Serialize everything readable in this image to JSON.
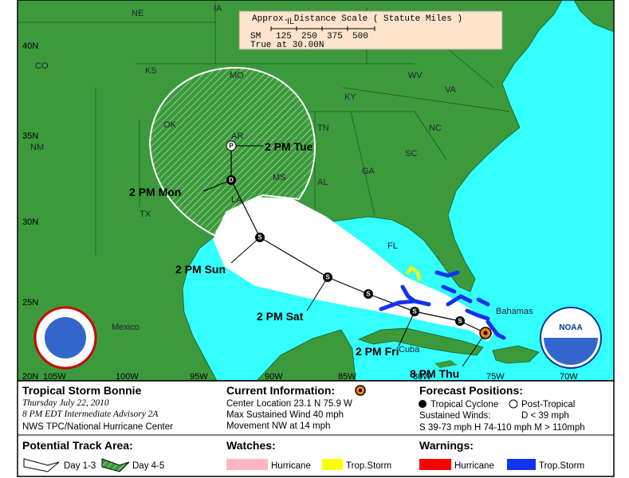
{
  "map": {
    "scale": {
      "title": "Approx. Distance Scale ( Statute Miles )",
      "unit": "SM",
      "ticks": [
        "125",
        "250",
        "375",
        "500"
      ],
      "note": "True at 30.00N"
    },
    "regions": [
      "NE",
      "IA",
      "IL",
      "KS",
      "MO",
      "KY",
      "WV",
      "VA",
      "OK",
      "AR",
      "TN",
      "NC",
      "CO",
      "NM",
      "TX",
      "MS",
      "AL",
      "GA",
      "SC",
      "LA",
      "FL",
      "Mexico",
      "Cuba",
      "Bahamas"
    ],
    "latitudes": [
      "40N",
      "35N",
      "30N",
      "25N",
      "20N"
    ],
    "longitudes": [
      "105W",
      "100W",
      "95W",
      "90W",
      "85W",
      "80W",
      "75W",
      "70W"
    ],
    "markers": [
      "S",
      "S",
      "S",
      "S",
      "S",
      "D",
      "P"
    ],
    "time_labels": [
      "8 PM Thu",
      "2 PM Fri",
      "2 PM Sat",
      "2 PM Sun",
      "2 PM Mon",
      "2 PM Tue"
    ],
    "logo": "NOAA"
  },
  "legend": {
    "storm": {
      "name": "Tropical Storm Bonnie",
      "date": "Thursday July 22, 2010",
      "advisory": "8 PM EDT Intermediate Advisory 2A",
      "source": "NWS TPC/National Hurricane Center"
    },
    "current": {
      "title": "Current Information:",
      "location": "Center Location 23.1 N 75.9 W",
      "wind": "Max Sustained Wind 40 mph",
      "movement": "Movement NW at 14 mph"
    },
    "forecast": {
      "title": "Forecast Positions:",
      "cyclone": "Tropical Cyclone",
      "post": "Post-Tropical",
      "winds_title": "Sustained Winds:",
      "d": "D < 39 mph",
      "scale": "S 39-73 mph H 74-110 mph M > 110mph"
    },
    "track": {
      "title": "Potential Track Area:",
      "day13": "Day 1-3",
      "day45": "Day 4-5"
    },
    "watches": {
      "title": "Watches:",
      "hurricane": "Hurricane",
      "storm": "Trop.Storm"
    },
    "warnings": {
      "title": "Warnings:",
      "hurricane": "Hurricane",
      "storm": "Trop.Storm"
    }
  }
}
